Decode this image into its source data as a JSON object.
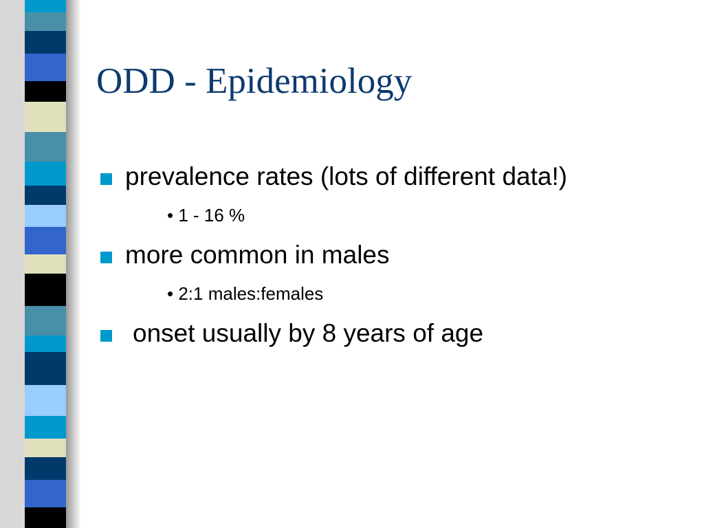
{
  "slide": {
    "title": "ODD - Epidemiology",
    "bullets": [
      {
        "text": "prevalence rates (lots of different data!)",
        "sub": [
          "1 - 16 %"
        ]
      },
      {
        "text": "more common in males",
        "sub": [
          "2:1 males:females"
        ]
      },
      {
        "text": "onset usually by 8 years of age",
        "sub": []
      }
    ]
  }
}
